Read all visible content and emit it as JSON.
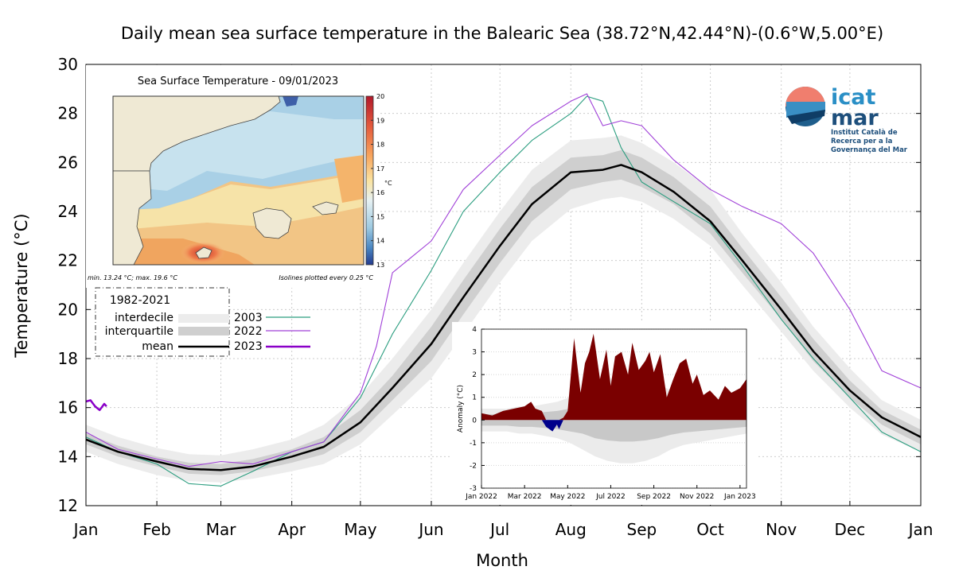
{
  "title": "Daily mean sea surface temperature in the Balearic Sea (38.72°N,42.44°N)-(0.6°W,5.00°E)",
  "logo": {
    "line1": "icat",
    "line2": "mar",
    "subtitle": [
      "Institut Català de",
      "Recerca per a la",
      "Governança del Mar"
    ]
  },
  "colors": {
    "s2003": "#2a9d7f",
    "s2022": "#a040d8",
    "s2023": "#8a00c8",
    "mean": "#000000",
    "anomaly_pos": "#7a0000",
    "anomaly_neg": "#00008b"
  },
  "chart_data": {
    "type": "line",
    "xlabel": "Month",
    "ylabel": "Temperature (°C)",
    "ylim": [
      12,
      30
    ],
    "yticks": [
      12,
      14,
      16,
      18,
      20,
      22,
      24,
      26,
      28,
      30
    ],
    "x_tick_labels": [
      "Jan",
      "Feb",
      "Mar",
      "Apr",
      "May",
      "Jun",
      "Jul",
      "Aug",
      "Sep",
      "Oct",
      "Nov",
      "Dec",
      "Jan"
    ],
    "x_tick_days": [
      1,
      32,
      60,
      91,
      121,
      152,
      182,
      213,
      244,
      274,
      305,
      335,
      366
    ],
    "grid": true,
    "day_of_year": [
      1,
      15,
      32,
      46,
      60,
      74,
      91,
      105,
      121,
      135,
      152,
      166,
      182,
      196,
      213,
      227,
      235,
      244,
      258,
      274,
      288,
      305,
      319,
      335,
      349,
      366
    ],
    "climatology": {
      "mean": [
        14.7,
        14.2,
        13.8,
        13.5,
        13.45,
        13.6,
        14.0,
        14.4,
        15.4,
        16.8,
        18.6,
        20.5,
        22.6,
        24.3,
        25.6,
        25.7,
        25.9,
        25.6,
        24.8,
        23.6,
        22.0,
        20.0,
        18.3,
        16.7,
        15.6,
        14.8
      ],
      "q25": [
        14.5,
        14.0,
        13.6,
        13.3,
        13.25,
        13.4,
        13.75,
        14.1,
        15.0,
        16.3,
        17.9,
        19.8,
        21.9,
        23.6,
        24.9,
        25.2,
        25.3,
        25.0,
        24.3,
        23.1,
        21.5,
        19.6,
        17.9,
        16.4,
        15.3,
        14.5
      ],
      "q75": [
        14.95,
        14.45,
        14.0,
        13.75,
        13.7,
        13.9,
        14.3,
        14.8,
        15.9,
        17.3,
        19.3,
        21.2,
        23.3,
        25.0,
        26.2,
        26.3,
        26.5,
        26.2,
        25.4,
        24.2,
        22.5,
        20.5,
        18.8,
        17.1,
        15.9,
        15.1
      ],
      "q10": [
        14.2,
        13.7,
        13.25,
        13.0,
        12.95,
        13.1,
        13.4,
        13.7,
        14.5,
        15.7,
        17.2,
        19.0,
        21.1,
        22.8,
        24.1,
        24.5,
        24.6,
        24.4,
        23.7,
        22.6,
        21.0,
        19.1,
        17.5,
        16.0,
        14.9,
        14.2
      ],
      "q90": [
        15.3,
        14.8,
        14.35,
        14.1,
        14.05,
        14.3,
        14.7,
        15.3,
        16.5,
        18.0,
        20.0,
        21.9,
        24.0,
        25.7,
        26.9,
        27.0,
        27.1,
        26.8,
        26.0,
        24.9,
        23.1,
        21.1,
        19.3,
        17.6,
        16.3,
        15.5
      ]
    },
    "series": [
      {
        "name": "2003",
        "days": [
          1,
          15,
          32,
          46,
          60,
          74,
          91,
          105,
          121,
          135,
          152,
          166,
          182,
          196,
          213,
          220,
          227,
          235,
          244,
          258,
          274,
          288,
          305,
          319,
          335,
          349,
          366
        ],
        "values": [
          14.8,
          14.2,
          13.7,
          12.9,
          12.8,
          13.4,
          14.2,
          14.6,
          16.4,
          19.0,
          21.6,
          24.0,
          25.6,
          26.9,
          28.0,
          28.7,
          28.5,
          26.6,
          25.2,
          24.4,
          23.5,
          21.8,
          19.6,
          18.0,
          16.4,
          15.0,
          14.2
        ]
      },
      {
        "name": "2022",
        "days": [
          1,
          15,
          32,
          46,
          60,
          74,
          91,
          105,
          121,
          128,
          135,
          152,
          166,
          182,
          196,
          213,
          220,
          227,
          235,
          244,
          258,
          274,
          288,
          305,
          319,
          335,
          349,
          366
        ],
        "values": [
          15.0,
          14.3,
          13.9,
          13.6,
          13.8,
          13.7,
          14.2,
          14.6,
          16.6,
          18.5,
          21.5,
          22.8,
          24.9,
          26.3,
          27.5,
          28.5,
          28.8,
          27.5,
          27.7,
          27.5,
          26.1,
          24.9,
          24.2,
          23.5,
          22.3,
          20.0,
          17.5,
          16.8
        ]
      },
      {
        "name": "2023",
        "days": [
          1,
          3,
          5,
          7,
          9,
          10
        ],
        "values": [
          16.25,
          16.3,
          16.05,
          15.9,
          16.15,
          16.05
        ]
      }
    ],
    "legend": {
      "group_title": "1982-2021",
      "clim_labels": [
        "interdecile",
        "interquartile",
        "mean"
      ],
      "series_labels": [
        "2003",
        "2022",
        "2023"
      ]
    },
    "anomaly_inset": {
      "ylabel": "Anomaly (°C)",
      "ylim": [
        -3,
        4
      ],
      "yticks": [
        -3,
        -2,
        -1,
        0,
        1,
        2,
        3,
        4
      ],
      "x_tick_labels": [
        "Jan 2022",
        "Mar 2022",
        "May 2022",
        "Jul 2022",
        "Sep 2022",
        "Nov 2022",
        "Jan 2023"
      ],
      "months_from_jan_2022": [
        0,
        0.5,
        1,
        1.5,
        2,
        2.3,
        2.5,
        2.8,
        3.0,
        3.3,
        3.5,
        3.6,
        3.8,
        4.0,
        4.3,
        4.6,
        4.8,
        5.0,
        5.2,
        5.5,
        5.8,
        6.0,
        6.2,
        6.5,
        6.8,
        7.0,
        7.3,
        7.6,
        7.8,
        8.0,
        8.3,
        8.6,
        8.9,
        9.2,
        9.5,
        9.8,
        10.0,
        10.3,
        10.6,
        11.0,
        11.3,
        11.6,
        12.0,
        12.3
      ],
      "values": [
        0.3,
        0.2,
        0.4,
        0.5,
        0.6,
        0.8,
        0.5,
        0.4,
        -0.3,
        -0.5,
        -0.2,
        -0.4,
        0.1,
        0.4,
        3.6,
        1.2,
        2.5,
        3.0,
        3.8,
        1.8,
        3.1,
        1.5,
        2.8,
        3.0,
        2.0,
        3.4,
        2.2,
        2.6,
        3.0,
        2.1,
        2.9,
        1.0,
        1.8,
        2.5,
        2.7,
        1.6,
        2.0,
        1.1,
        1.3,
        0.9,
        1.5,
        1.2,
        1.4,
        1.8
      ],
      "clim_p10_abs": [
        0.5,
        0.5,
        0.5,
        0.6,
        0.6,
        0.7,
        0.8,
        1.0,
        1.3,
        1.6,
        1.8,
        1.9,
        1.9,
        1.8,
        1.6,
        1.3,
        1.1,
        1.0,
        0.9,
        0.8,
        0.7,
        0.6
      ],
      "clim_p25_abs": [
        0.25,
        0.25,
        0.25,
        0.3,
        0.3,
        0.35,
        0.4,
        0.5,
        0.6,
        0.8,
        0.9,
        0.95,
        0.95,
        0.9,
        0.8,
        0.65,
        0.55,
        0.5,
        0.45,
        0.4,
        0.35,
        0.3
      ]
    },
    "map_inset": {
      "title": "Sea Surface Temperature - 09/01/2023",
      "colorbar_ticks": [
        "20",
        "19",
        "18",
        "17",
        "16",
        "15",
        "14",
        "13"
      ],
      "colorbar_unit": "°C",
      "footnote_left": "min. 13.24 °C; max. 19.6 °C",
      "footnote_right": "Isolines plotted every 0.25 °C"
    }
  }
}
